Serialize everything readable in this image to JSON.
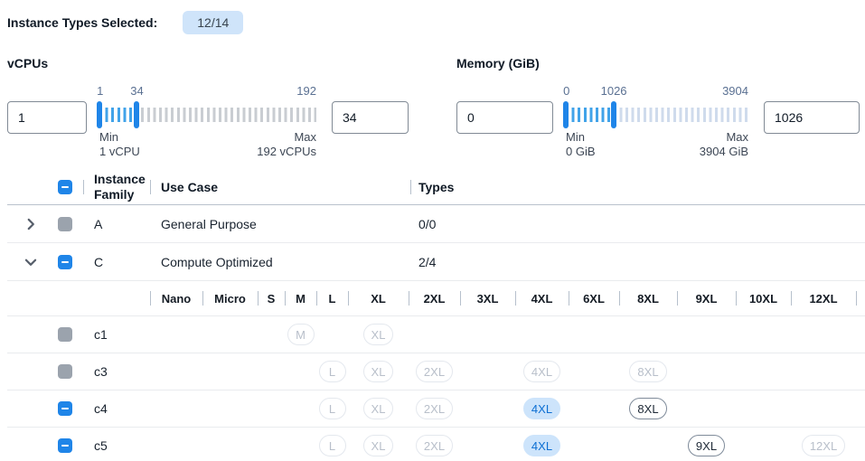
{
  "page": {
    "selected_label": "Instance Types Selected:",
    "selected_badge": "12/14"
  },
  "filters": [
    {
      "id": "vcpus",
      "title": "vCPUs",
      "from_input": "1",
      "to_input": "34",
      "domain_min": 1,
      "domain_max": 192,
      "range_from": 1,
      "range_to": 34,
      "scale_labels": {
        "start": "1",
        "mid": "34",
        "end": "192"
      },
      "min_caption": [
        "Min",
        "1 vCPU"
      ],
      "max_caption": [
        "Max",
        "192 vCPUs"
      ],
      "out_tick_color": "#c9cdd2"
    },
    {
      "id": "memory",
      "title": "Memory (GiB)",
      "from_input": "0",
      "to_input": "1026",
      "domain_min": 0,
      "domain_max": 3904,
      "range_from": 0,
      "range_to": 1026,
      "scale_labels": {
        "start": "0",
        "mid": "1026",
        "end": "3904"
      },
      "min_caption": [
        "Min",
        "0 GiB"
      ],
      "max_caption": [
        "Max",
        "3904 GiB"
      ],
      "out_tick_color": "#cfdbec"
    }
  ],
  "table": {
    "headers": {
      "family": "Instance Family",
      "use_case": "Use Case",
      "types": "Types"
    },
    "select_all_state": "indeterminate",
    "size_columns": [
      "Nano",
      "Micro",
      "S",
      "M",
      "L",
      "XL",
      "2XL",
      "3XL",
      "4XL",
      "6XL",
      "8XL",
      "9XL",
      "10XL",
      "12XL"
    ],
    "family_rows": [
      {
        "family": "A",
        "use_case": "General Purpose",
        "types": "0/0",
        "expanded": false,
        "checkbox": "disabled"
      },
      {
        "family": "C",
        "use_case": "Compute Optimized",
        "types": "2/4",
        "expanded": true,
        "checkbox": "indeterminate"
      }
    ],
    "instance_rows": [
      {
        "name": "c1",
        "checkbox": "disabled",
        "sizes": [
          {
            "col": "M",
            "label": "M",
            "state": "disabled"
          },
          {
            "col": "XL",
            "label": "XL",
            "state": "disabled"
          }
        ]
      },
      {
        "name": "c3",
        "checkbox": "disabled",
        "sizes": [
          {
            "col": "L",
            "label": "L",
            "state": "disabled"
          },
          {
            "col": "XL",
            "label": "XL",
            "state": "disabled"
          },
          {
            "col": "2XL",
            "label": "2XL",
            "state": "disabled"
          },
          {
            "col": "4XL",
            "label": "4XL",
            "state": "disabled"
          },
          {
            "col": "8XL",
            "label": "8XL",
            "state": "disabled"
          }
        ]
      },
      {
        "name": "c4",
        "checkbox": "indeterminate",
        "sizes": [
          {
            "col": "L",
            "label": "L",
            "state": "disabled"
          },
          {
            "col": "XL",
            "label": "XL",
            "state": "disabled"
          },
          {
            "col": "2XL",
            "label": "2XL",
            "state": "disabled"
          },
          {
            "col": "4XL",
            "label": "4XL",
            "state": "selected"
          },
          {
            "col": "8XL",
            "label": "8XL",
            "state": "enabled"
          }
        ]
      },
      {
        "name": "c5",
        "checkbox": "indeterminate",
        "sizes": [
          {
            "col": "L",
            "label": "L",
            "state": "disabled"
          },
          {
            "col": "XL",
            "label": "XL",
            "state": "disabled"
          },
          {
            "col": "2XL",
            "label": "2XL",
            "state": "disabled"
          },
          {
            "col": "4XL",
            "label": "4XL",
            "state": "selected"
          },
          {
            "col": "9XL",
            "label": "9XL",
            "state": "enabled"
          },
          {
            "col": "12XL",
            "label": "12XL",
            "state": "disabled"
          }
        ]
      }
    ]
  },
  "colors": {
    "accent": "#1f85e8",
    "in_range_tick": "#41a3e9",
    "badge_bg": "#cfe4fa",
    "selected_pill_bg": "#cde4fb",
    "selected_pill_border": "#cde4fb"
  }
}
